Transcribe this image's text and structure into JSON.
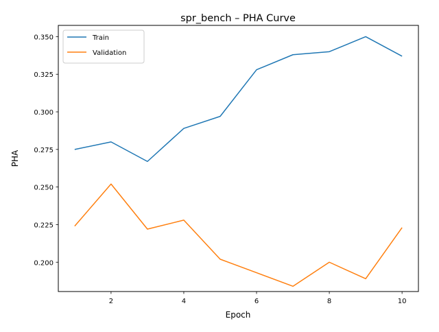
{
  "chart_data": {
    "type": "line",
    "title": "spr_bench – PHA Curve",
    "xlabel": "Epoch",
    "ylabel": "PHA",
    "x": [
      1,
      2,
      3,
      4,
      5,
      6,
      7,
      8,
      9,
      10
    ],
    "xlim": [
      0.55,
      10.45
    ],
    "ylim": [
      0.1805,
      0.3575
    ],
    "xticks": [
      2,
      4,
      6,
      8,
      10
    ],
    "yticks": [
      0.2,
      0.225,
      0.25,
      0.275,
      0.3,
      0.325,
      0.35
    ],
    "xtick_labels": [
      "2",
      "4",
      "6",
      "8",
      "10"
    ],
    "ytick_labels": [
      "0.200",
      "0.225",
      "0.250",
      "0.275",
      "0.300",
      "0.325",
      "0.350"
    ],
    "grid": false,
    "legend_position": "top-left",
    "series": [
      {
        "name": "Train",
        "color": "#1f77b4",
        "values": [
          0.275,
          0.28,
          0.267,
          0.289,
          0.297,
          0.328,
          0.338,
          0.34,
          0.35,
          0.337
        ]
      },
      {
        "name": "Validation",
        "color": "#ff7f0e",
        "values": [
          0.224,
          0.252,
          0.222,
          0.228,
          0.202,
          0.193,
          0.184,
          0.2,
          0.189,
          0.223
        ]
      }
    ]
  }
}
